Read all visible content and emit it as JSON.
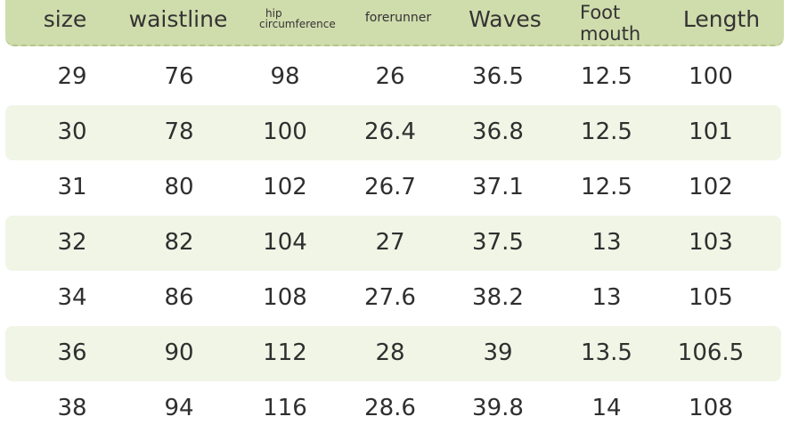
{
  "table": {
    "headers": {
      "size": "size",
      "waistline": "waistline",
      "hip_line1": "hip",
      "hip_line2": "circumference",
      "forerunner": "forerunner",
      "waves": "Waves",
      "foot_line1": "Foot",
      "foot_line2": "mouth",
      "length": "Length"
    },
    "rows": [
      [
        "29",
        "76",
        "98",
        "26",
        "36.5",
        "12.5",
        "100"
      ],
      [
        "30",
        "78",
        "100",
        "26.4",
        "36.8",
        "12.5",
        "101"
      ],
      [
        "31",
        "80",
        "102",
        "26.7",
        "37.1",
        "12.5",
        "102"
      ],
      [
        "32",
        "82",
        "104",
        "27",
        "37.5",
        "13",
        "103"
      ],
      [
        "34",
        "86",
        "108",
        "27.6",
        "38.2",
        "13",
        "105"
      ],
      [
        "36",
        "90",
        "112",
        "28",
        "39",
        "13.5",
        "106.5"
      ],
      [
        "38",
        "94",
        "116",
        "28.6",
        "39.8",
        "14",
        "108"
      ]
    ]
  },
  "colors": {
    "header_bg": "#cfdcac",
    "stripe_bg": "#f1f5e6",
    "text": "#2f2f2f"
  }
}
